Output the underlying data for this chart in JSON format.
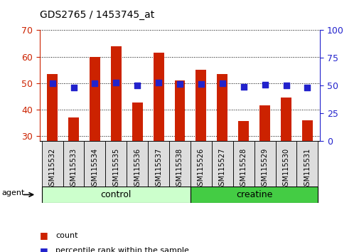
{
  "title": "GDS2765 / 1453745_at",
  "categories": [
    "GSM115532",
    "GSM115533",
    "GSM115534",
    "GSM115535",
    "GSM115536",
    "GSM115537",
    "GSM115538",
    "GSM115526",
    "GSM115527",
    "GSM115528",
    "GSM115529",
    "GSM115530",
    "GSM115531"
  ],
  "count_values": [
    53.5,
    37.0,
    60.0,
    64.0,
    42.5,
    61.5,
    51.0,
    55.0,
    53.5,
    35.5,
    41.5,
    44.5,
    36.0
  ],
  "percentile_values": [
    52.0,
    48.5,
    52.0,
    52.5,
    50.0,
    52.5,
    51.5,
    51.5,
    52.0,
    49.0,
    51.0,
    50.5,
    48.5
  ],
  "ylim_left": [
    28,
    70
  ],
  "ylim_right": [
    0,
    100
  ],
  "bar_color": "#cc2200",
  "dot_color": "#2222cc",
  "control_label": "control",
  "creatine_label": "creatine",
  "agent_label": "agent",
  "legend_count": "count",
  "legend_percentile": "percentile rank within the sample",
  "left_tick_color": "#cc2200",
  "right_tick_color": "#2222cc",
  "control_bg": "#ccffcc",
  "creatine_bg": "#44cc44",
  "bar_width": 0.5,
  "dot_size": 28,
  "yticks_left": [
    30,
    40,
    50,
    60,
    70
  ],
  "yticks_right": [
    0,
    25,
    50,
    75,
    100
  ],
  "n_control": 7,
  "n_creatine": 6
}
